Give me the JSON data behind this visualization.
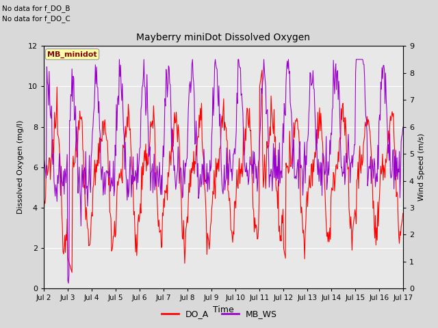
{
  "title": "Mayberry miniDot Dissolved Oxygen",
  "xlabel": "Time",
  "ylabel_left": "Dissolved Oxygen (mg/l)",
  "ylabel_right": "Wind Speed (m/s)",
  "text_no_data": [
    "No data for f_DO_B",
    "No data for f_DO_C"
  ],
  "legend_label_box": "MB_minidot",
  "legend_labels": [
    "DO_A",
    "MB_WS"
  ],
  "legend_colors": [
    "#ff0000",
    "#9900cc"
  ],
  "do_a_color": "#ff0000",
  "mb_ws_color": "#9900cc",
  "ylim_left": [
    0,
    12
  ],
  "ylim_right": [
    0.0,
    9.0
  ],
  "yticks_left": [
    0,
    2,
    4,
    6,
    8,
    10,
    12
  ],
  "yticks_right": [
    0.0,
    1.0,
    2.0,
    3.0,
    4.0,
    5.0,
    6.0,
    7.0,
    8.0,
    9.0
  ],
  "xtick_labels": [
    "Jul 2",
    "Jul 3",
    "Jul 4",
    "Jul 5",
    "Jul 6",
    "Jul 7",
    "Jul 8",
    "Jul 9",
    "Jul 10",
    "Jul 11",
    "Jul 12",
    "Jul 13",
    "Jul 14",
    "Jul 15",
    "Jul 16",
    "Jul 17"
  ],
  "bg_color": "#d9d9d9",
  "plot_bg_color": "#e8e8e8",
  "grid_color": "#ffffff",
  "figsize": [
    6.4,
    4.8
  ],
  "dpi": 100
}
